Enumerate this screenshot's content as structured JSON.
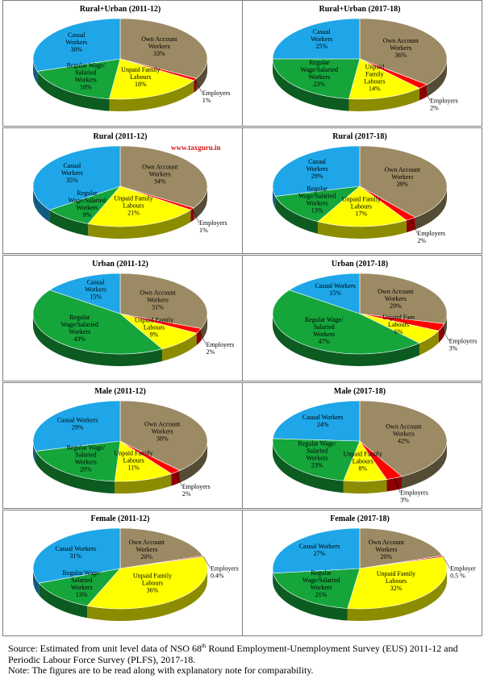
{
  "watermark": "www.taxguru.in",
  "footer": {
    "source_pre": "Source: Estimated from unit level data of NSO 68",
    "source_sup": "th",
    "source_post": " Round Employment-Unemployment Survey (EUS) 2011-12 and Periodic Labour Force Survey (PLFS), 2017-18.",
    "note": "Note: The figures are to be read along with explanatory note for comparability."
  },
  "colors": {
    "own_account": "#9b8a63",
    "employers": "#ff0000",
    "unpaid_family": "#ffff00",
    "regular_wage": "#15a53b",
    "casual": "#1ea6e8"
  },
  "chart_data": [
    {
      "type": "pie",
      "title": "Rural+Urban (2011-12)",
      "slices": [
        {
          "key": "own_account",
          "label": "Own Account\nWorkers\n33%",
          "value": 33
        },
        {
          "key": "employers",
          "label": "Employers\n1%",
          "value": 1
        },
        {
          "key": "unpaid_family",
          "label": "Unpaid Family\nLabours\n18%",
          "value": 18
        },
        {
          "key": "regular_wage",
          "label": "Regular Wage/\nSalaried\nWorkers\n18%",
          "value": 18
        },
        {
          "key": "casual",
          "label": "Casual\nWorkers\n30%",
          "value": 30
        }
      ]
    },
    {
      "type": "pie",
      "title": "Rural+Urban (2017-18)",
      "slices": [
        {
          "key": "own_account",
          "label": "Own Account\nWorkers\n36%",
          "value": 36
        },
        {
          "key": "employers",
          "label": "Employers\n2%",
          "value": 2
        },
        {
          "key": "unpaid_family",
          "label": "Unpaid\nFamily\nLabours\n14%",
          "value": 14
        },
        {
          "key": "regular_wage",
          "label": "Regular\nWage/Salaried\nWorkers\n23%",
          "value": 23
        },
        {
          "key": "casual",
          "label": "Casual\nWorkers\n25%",
          "value": 25
        }
      ]
    },
    {
      "type": "pie",
      "title": "Rural (2011-12)",
      "slices": [
        {
          "key": "own_account",
          "label": "Own Account\nWorkers\n34%",
          "value": 34
        },
        {
          "key": "employers",
          "label": "Employers\n1%",
          "value": 1
        },
        {
          "key": "unpaid_family",
          "label": "Unpaid Family\nLabours\n21%",
          "value": 21
        },
        {
          "key": "regular_wage",
          "label": "Regular\nWage/Salaried\nWorkers\n9%",
          "value": 9
        },
        {
          "key": "casual",
          "label": "Casual\nWorkers\n35%",
          "value": 35
        }
      ]
    },
    {
      "type": "pie",
      "title": "Rural (2017-18)",
      "slices": [
        {
          "key": "own_account",
          "label": "Own Account\nWorkers\n39%",
          "value": 39
        },
        {
          "key": "employers",
          "label": "Employers\n2%",
          "value": 2
        },
        {
          "key": "unpaid_family",
          "label": "Unpaid Family\nLabours\n17%",
          "value": 17
        },
        {
          "key": "regular_wage",
          "label": "Regular\nWage/Salaried\nWorkers\n13%",
          "value": 13
        },
        {
          "key": "casual",
          "label": "Casual\nWorkers\n29%",
          "value": 29
        }
      ]
    },
    {
      "type": "pie",
      "title": "Urban (2011-12)",
      "slices": [
        {
          "key": "own_account",
          "label": "Own Account\nWorkers\n31%",
          "value": 31
        },
        {
          "key": "employers",
          "label": "Employers\n2%",
          "value": 2
        },
        {
          "key": "unpaid_family",
          "label": "Unpaid Family\nLabours\n9%",
          "value": 9
        },
        {
          "key": "regular_wage",
          "label": "Regular\nWage/Salaried\nWorkers\n43%",
          "value": 43
        },
        {
          "key": "casual",
          "label": "Casual\nWorkers\n15%",
          "value": 15
        }
      ]
    },
    {
      "type": "pie",
      "title": "Urban (2017-18)",
      "slices": [
        {
          "key": "own_account",
          "label": "Own Account\nWorkers\n29%",
          "value": 29
        },
        {
          "key": "employers",
          "label": "Employers\n3%",
          "value": 3
        },
        {
          "key": "unpaid_family",
          "label": "Unpaid Fam\nLabours\n6%",
          "value": 6
        },
        {
          "key": "regular_wage",
          "label": "Regular Wage/\nSalaried\nWorkers\n47%",
          "value": 47
        },
        {
          "key": "casual",
          "label": "Casual Workers\n15%",
          "value": 15
        }
      ]
    },
    {
      "type": "pie",
      "title": "Male (2011-12)",
      "slices": [
        {
          "key": "own_account",
          "label": "Own Account\nWorkers\n38%",
          "value": 38
        },
        {
          "key": "employers",
          "label": "Employers\n2%",
          "value": 2
        },
        {
          "key": "unpaid_family",
          "label": "Unpaid Family\nLabours\n11%",
          "value": 11
        },
        {
          "key": "regular_wage",
          "label": "Regular Wage/\nSalaried\nWorkers\n20%",
          "value": 20
        },
        {
          "key": "casual",
          "label": "Casual Workers\n29%",
          "value": 29
        }
      ]
    },
    {
      "type": "pie",
      "title": "Male (2017-18)",
      "slices": [
        {
          "key": "own_account",
          "label": "Own Account\nWorkers\n42%",
          "value": 42
        },
        {
          "key": "employers",
          "label": "Employers\n3%",
          "value": 3
        },
        {
          "key": "unpaid_family",
          "label": "Unpaid Family\nLabours\n8%",
          "value": 8
        },
        {
          "key": "regular_wage",
          "label": "Regular Wage/\nSalaried\nWorkers\n23%",
          "value": 23
        },
        {
          "key": "casual",
          "label": "Casual Workers\n24%",
          "value": 24
        }
      ]
    },
    {
      "type": "pie",
      "title": "Female (2011-12)",
      "slices": [
        {
          "key": "own_account",
          "label": "Own Account\nWorkers\n20%",
          "value": 20
        },
        {
          "key": "employers",
          "label": "Employers\n0.4%",
          "value": 0.4
        },
        {
          "key": "unpaid_family",
          "label": "Unpaid Family\nLabours\n36%",
          "value": 36
        },
        {
          "key": "regular_wage",
          "label": "Regular Wage/\nSalaried\nWorkers\n13%",
          "value": 13
        },
        {
          "key": "casual",
          "label": "Casual Workers\n31%",
          "value": 31
        }
      ]
    },
    {
      "type": "pie",
      "title": "Female (2017-18)",
      "slices": [
        {
          "key": "own_account",
          "label": "Own Account\nWorkers\n20%",
          "value": 20
        },
        {
          "key": "employers",
          "label": "Employer\n0.5 %",
          "value": 0.5
        },
        {
          "key": "unpaid_family",
          "label": "Unpaid Family\nLabours\n32%",
          "value": 32
        },
        {
          "key": "regular_wage",
          "label": "Regular\nWage/Salaried\nWorkers\n21%",
          "value": 21
        },
        {
          "key": "casual",
          "label": "Casual Workers\n27%",
          "value": 27
        }
      ]
    }
  ]
}
